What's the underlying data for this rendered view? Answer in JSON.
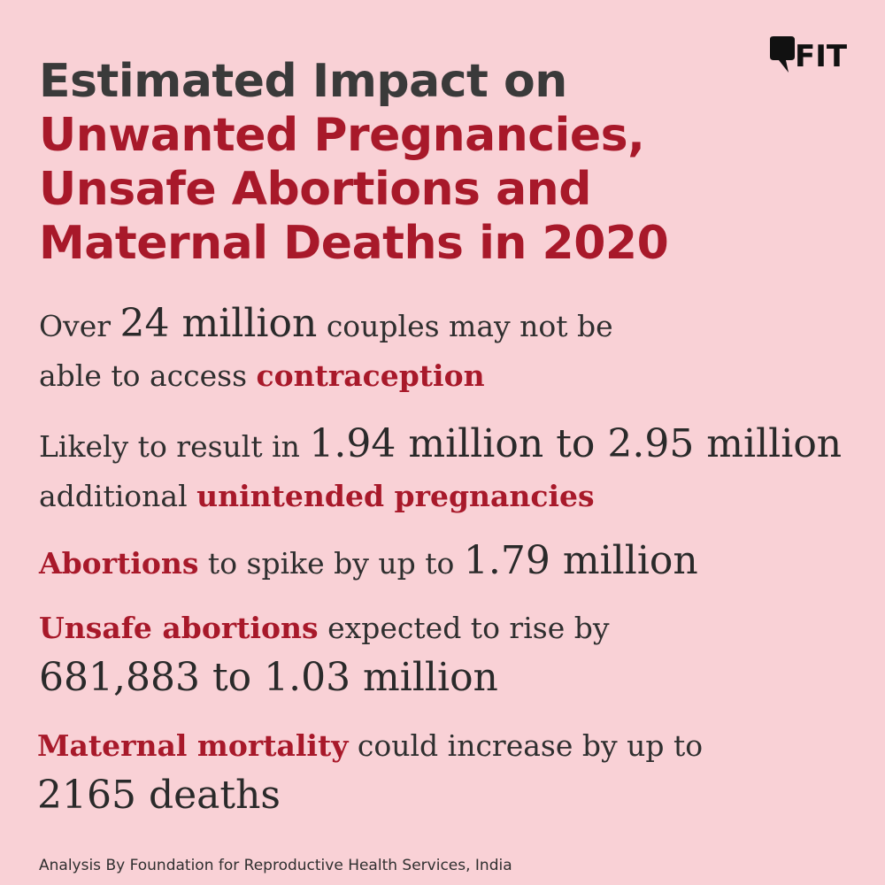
{
  "title": {
    "line1": "Estimated Impact on",
    "line2": "Unwanted Pregnancies,",
    "line3": "Unsafe Abortions and",
    "line4": "Maternal Deaths in 2020"
  },
  "logo": {
    "text": "FIT",
    "icon": "speech-bubble-icon"
  },
  "facts": {
    "f1": {
      "pre": "Over ",
      "big": "24 million",
      "mid": " couples may not be",
      "line2_pre": "able to access ",
      "highlight": "contraception"
    },
    "f2": {
      "pre": "Likely to result in ",
      "big": "1.94 million to 2.95 million",
      "line2_pre": "additional ",
      "highlight": "unintended pregnancies"
    },
    "f3": {
      "highlight": "Abortions",
      "mid": " to spike by up to ",
      "big": "1.79 million"
    },
    "f4": {
      "highlight": "Unsafe abortions",
      "mid": " expected to rise by",
      "big": "681,883 to 1.03 million"
    },
    "f5": {
      "highlight": "Maternal mortality",
      "mid": " could increase by up to",
      "big": "2165 deaths"
    }
  },
  "source": "Analysis By Foundation for Reproductive Health Services, India",
  "colors": {
    "background": "#f9d1d6",
    "accent": "#a8192a",
    "text": "#2f2f2f"
  }
}
